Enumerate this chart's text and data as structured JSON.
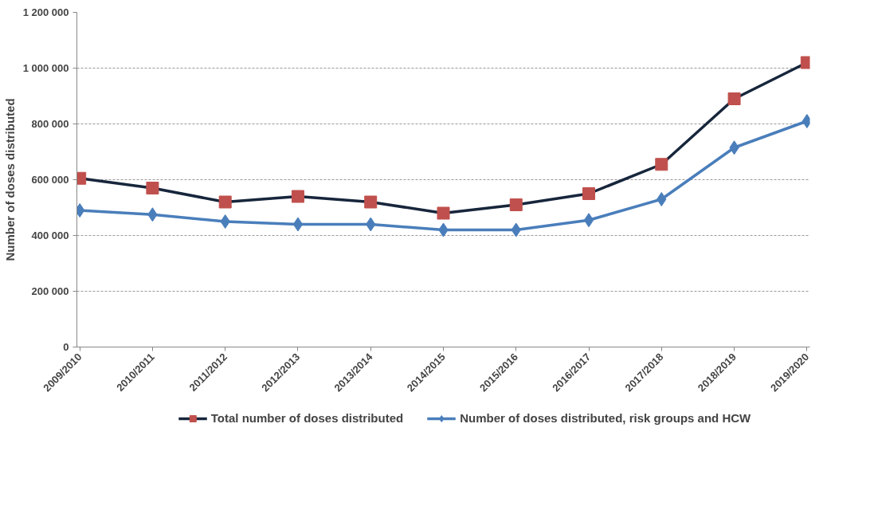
{
  "chart_data": {
    "type": "line",
    "ylabel": "Number of doses distributed",
    "categories": [
      "2009/2010",
      "2010/2011",
      "2011/2012",
      "2012/2013",
      "2013/2014",
      "2014/2015",
      "2015/2016",
      "2016/2017",
      "2017/2018",
      "2018/2019",
      "2019/2020"
    ],
    "series": [
      {
        "name": "Total number of doses distributed",
        "color": "#17263c",
        "marker": "square",
        "colors": [
          "#c0504d",
          "#c0504d",
          "#c0504d",
          "#c0504d",
          "#c0504d",
          "#c0504d",
          "#c0504d",
          "#c0504d",
          "#c0504d",
          "#c0504d",
          "#c0504d"
        ],
        "values": [
          605000,
          570000,
          520000,
          540000,
          520000,
          480000,
          510000,
          550000,
          655000,
          890000,
          1020000
        ]
      },
      {
        "name": "Number of doses distributed, risk groups and HCW",
        "color": "#4a7ebb",
        "marker": "diamond",
        "values": [
          490000,
          475000,
          450000,
          440000,
          440000,
          420000,
          420000,
          455000,
          530000,
          715000,
          810000
        ]
      }
    ],
    "ylim": [
      0,
      1200000
    ],
    "yticks": [
      {
        "value": 0,
        "label": "0"
      },
      {
        "value": 200000,
        "label": "200 000"
      },
      {
        "value": 400000,
        "label": "400 000"
      },
      {
        "value": 600000,
        "label": "600 000"
      },
      {
        "value": 800000,
        "label": "800 000"
      },
      {
        "value": 1000000,
        "label": "1 000 000"
      },
      {
        "value": 1200000,
        "label": "1 200 000"
      }
    ],
    "grid": "y",
    "legend": "bottom",
    "line_style": "solid"
  }
}
